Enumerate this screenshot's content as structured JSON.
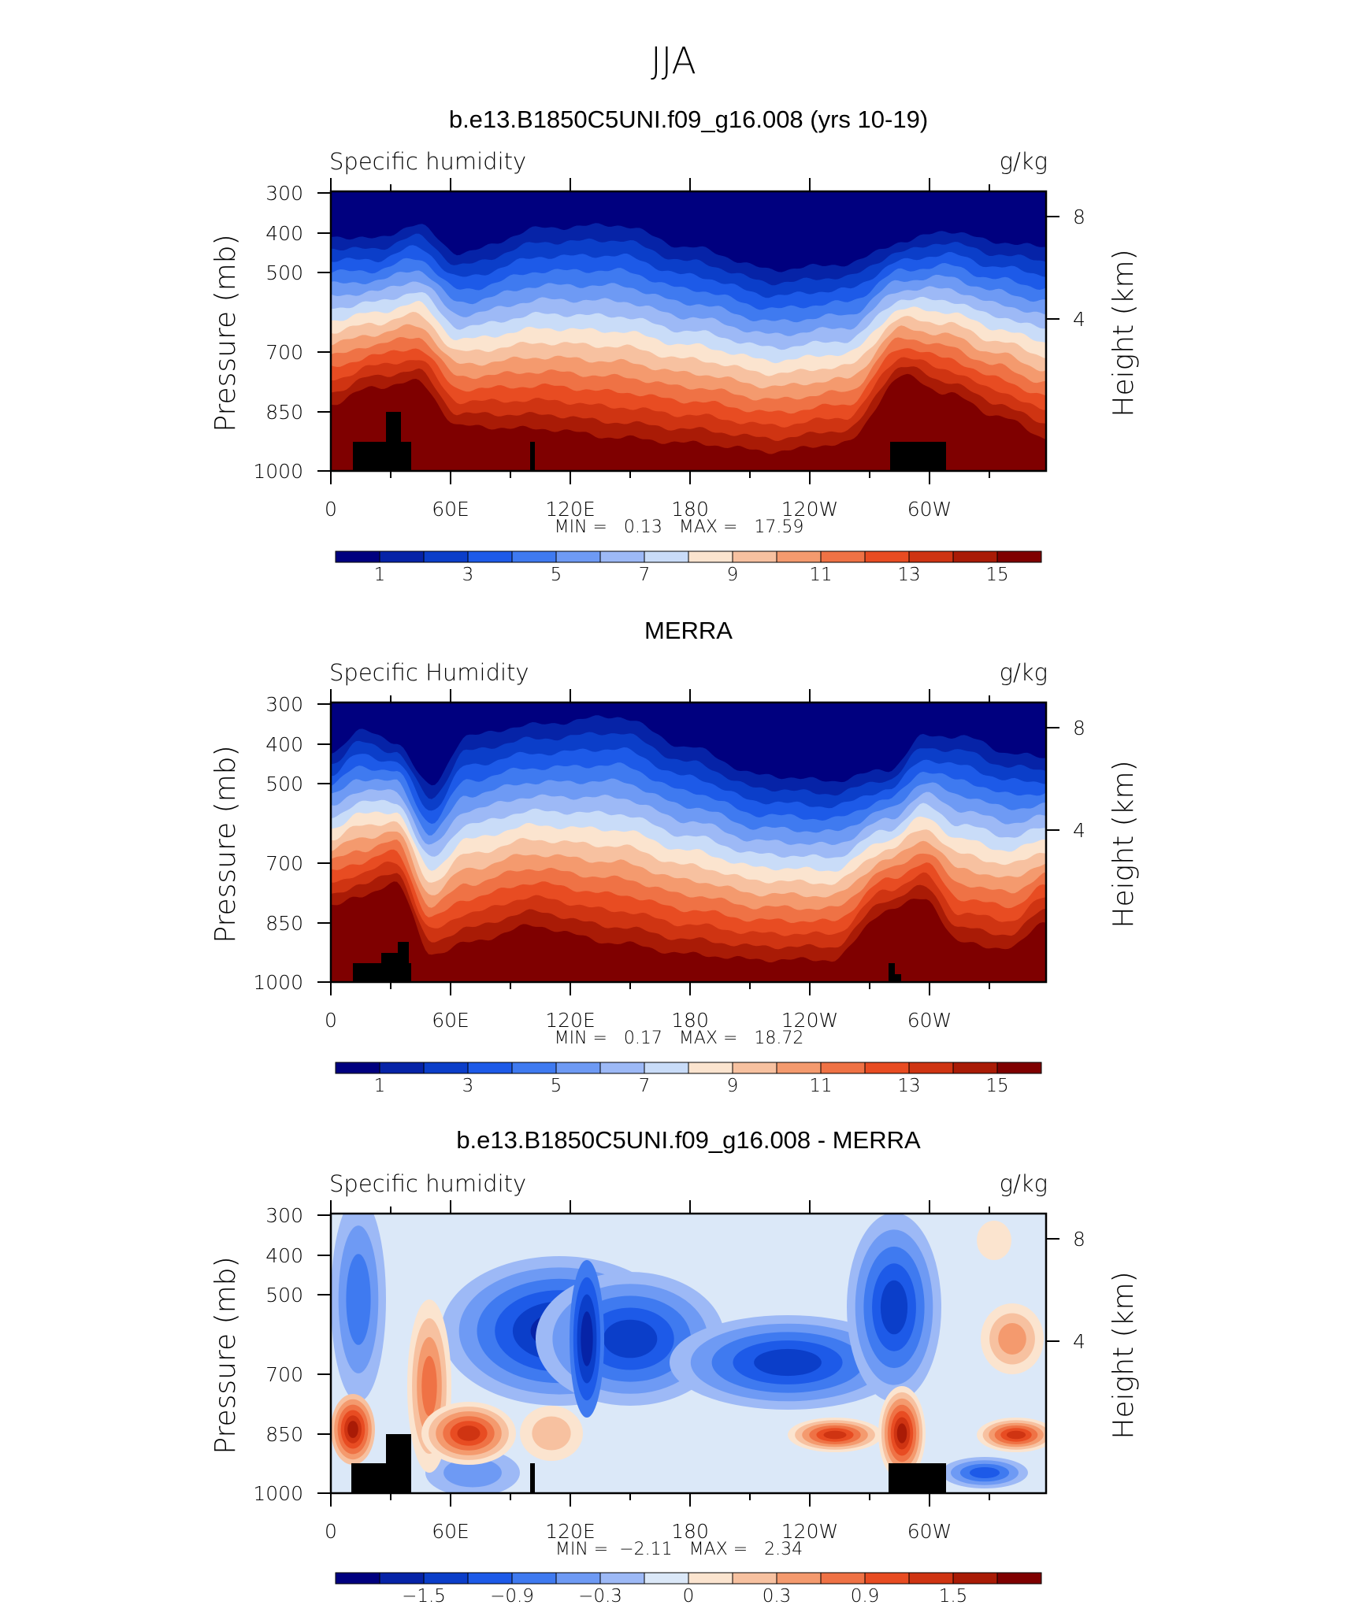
{
  "figure": {
    "title": "JJA"
  },
  "chart_data": [
    {
      "type": "heatmap",
      "title": "b.e13.B1850C5UNI.f09_g16.008 (yrs 10-19)",
      "left_string": "Specific humidity",
      "right_string": "g/kg",
      "ylabel": "Pressure (mb)",
      "y2label": "Height (km)",
      "ylim": [
        1000,
        300
      ],
      "y_ticks": [
        "300",
        "400",
        "500",
        "700",
        "850",
        "1000"
      ],
      "y2_ticks": [
        "8",
        "4"
      ],
      "x_ticks": [
        "0",
        "60E",
        "120E",
        "180",
        "120W",
        "60W"
      ],
      "stats": "MIN =   0.13   MAX =   17.59",
      "colorbar_labels": [
        "1",
        "3",
        "5",
        "7",
        "9",
        "11",
        "13",
        "15"
      ],
      "colorbar_levels": [
        1,
        2,
        3,
        4,
        5,
        6,
        7,
        8,
        9,
        10,
        11,
        12,
        13,
        14,
        15,
        16
      ],
      "grid": false
    },
    {
      "type": "heatmap",
      "title": "MERRA",
      "left_string": "Specific Humidity",
      "right_string": "g/kg",
      "ylabel": "Pressure (mb)",
      "y2label": "Height (km)",
      "ylim": [
        1000,
        300
      ],
      "y_ticks": [
        "300",
        "400",
        "500",
        "700",
        "850",
        "1000"
      ],
      "y2_ticks": [
        "8",
        "4"
      ],
      "x_ticks": [
        "0",
        "60E",
        "120E",
        "180",
        "120W",
        "60W"
      ],
      "stats": "MIN =   0.17   MAX =   18.72",
      "colorbar_labels": [
        "1",
        "3",
        "5",
        "7",
        "9",
        "11",
        "13",
        "15"
      ],
      "colorbar_levels": [
        1,
        2,
        3,
        4,
        5,
        6,
        7,
        8,
        9,
        10,
        11,
        12,
        13,
        14,
        15,
        16
      ],
      "grid": false
    },
    {
      "type": "heatmap",
      "title": "b.e13.B1850C5UNI.f09_g16.008 - MERRA",
      "left_string": "Specific humidity",
      "right_string": "g/kg",
      "ylabel": "Pressure (mb)",
      "y2label": "Height (km)",
      "ylim": [
        1000,
        300
      ],
      "y_ticks": [
        "300",
        "400",
        "500",
        "700",
        "850",
        "1000"
      ],
      "y2_ticks": [
        "8",
        "4"
      ],
      "x_ticks": [
        "0",
        "60E",
        "120E",
        "180",
        "120W",
        "60W"
      ],
      "stats": "MIN =  −2.11   MAX =   2.34",
      "colorbar_labels": [
        "−1.5",
        "−0.9",
        "−0.3",
        "0",
        "0.3",
        "0.9",
        "1.5"
      ],
      "colorbar_levels": [
        -1.8,
        -1.5,
        -1.2,
        -0.9,
        -0.6,
        -0.3,
        -0.1,
        0,
        0.1,
        0.3,
        0.6,
        0.9,
        1.2,
        1.5,
        1.8
      ],
      "grid": false
    }
  ],
  "colors": {
    "palette16": [
      "#00007f",
      "#0623a7",
      "#0b3ec9",
      "#1d5ae8",
      "#3f7af0",
      "#6e9af4",
      "#9db9f6",
      "#c9dcf8",
      "#fbe4cf",
      "#f7c1a0",
      "#f49a6e",
      "#ef7245",
      "#e84c22",
      "#cf3412",
      "#a91b06",
      "#7f0000"
    ],
    "palette16_div": [
      "#00007f",
      "#0623a7",
      "#0b3ec9",
      "#1d5ae8",
      "#3f7af0",
      "#6e9af4",
      "#9db9f6",
      "#dbe8f8",
      "#fbe4cf",
      "#f7c1a0",
      "#f49a6e",
      "#ef7245",
      "#e84c22",
      "#cf3412",
      "#a91b06",
      "#7f0000"
    ],
    "terrain": "#000000",
    "frame": "#000000"
  }
}
